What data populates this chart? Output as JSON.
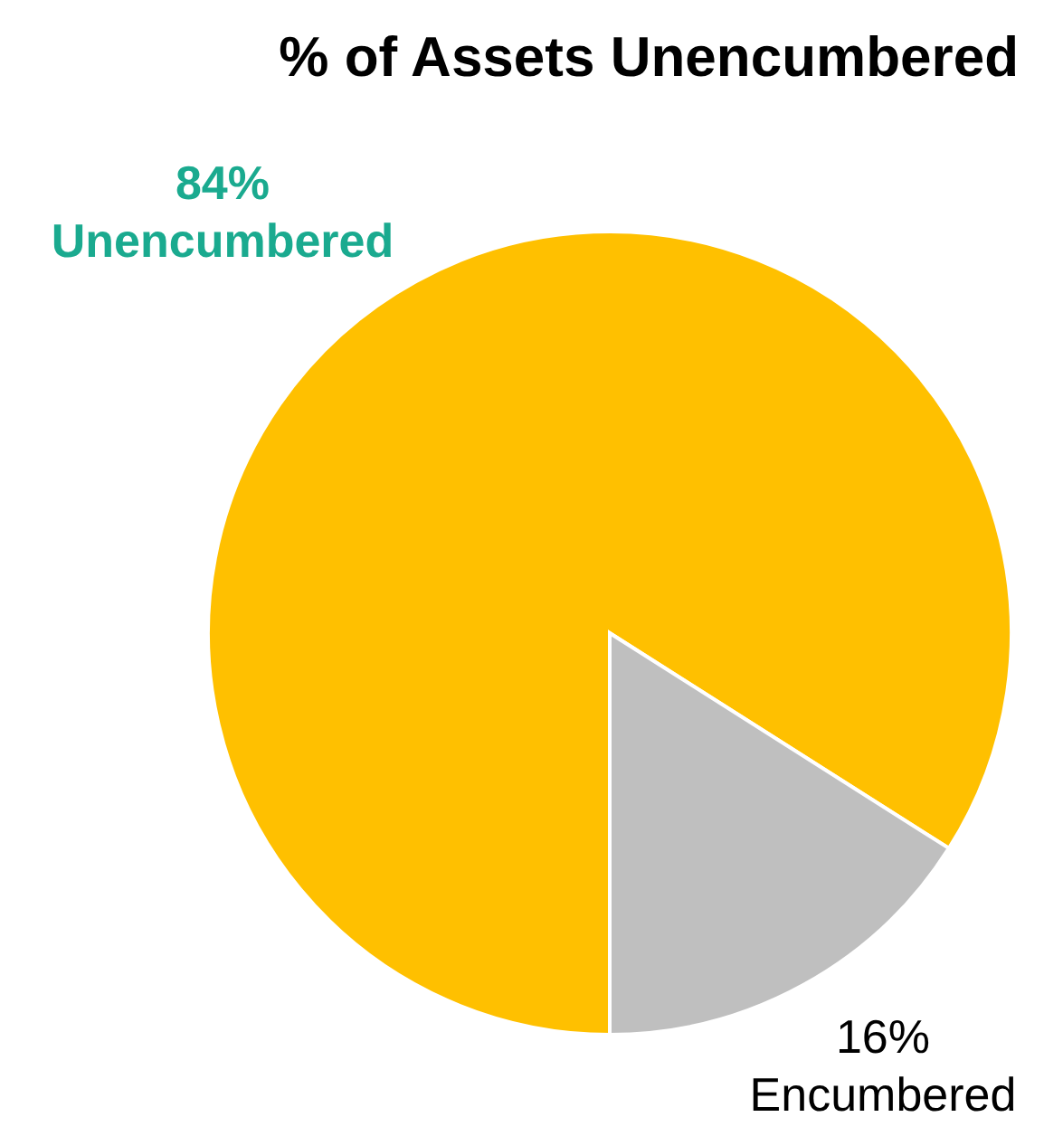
{
  "chart_data": {
    "type": "pie",
    "title": "% of Assets Unencumbered",
    "categories": [
      "Unencumbered",
      "Encumbered"
    ],
    "values": [
      84,
      16
    ],
    "colors": [
      "#ffc000",
      "#bfbfbf"
    ],
    "value_labels": [
      "84%",
      "16%"
    ]
  }
}
